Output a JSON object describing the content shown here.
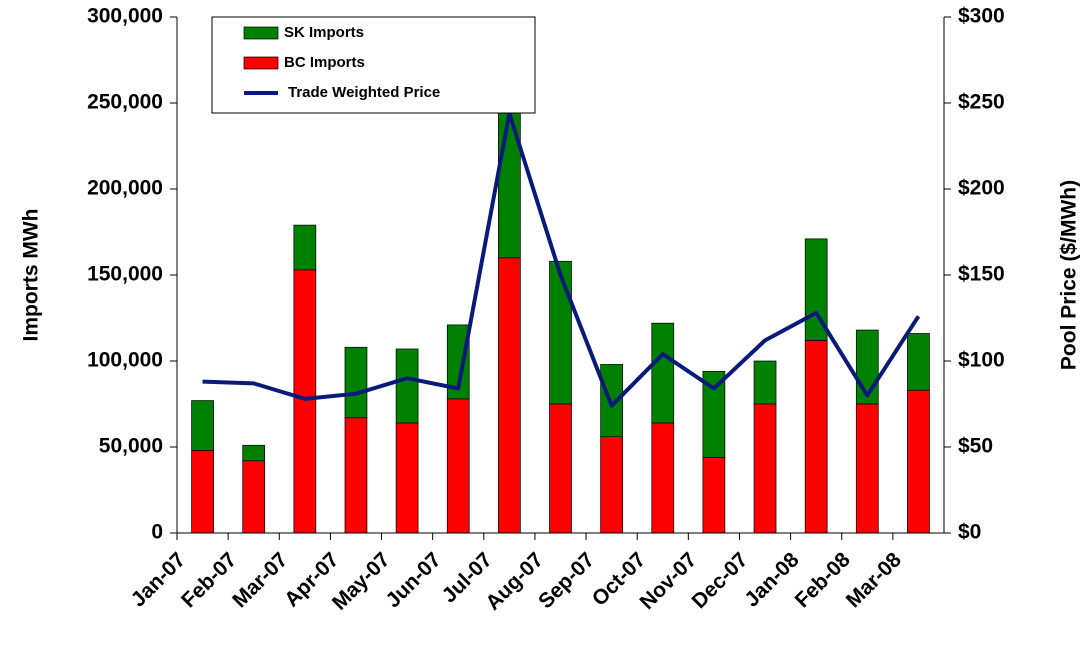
{
  "chart_data": {
    "type": "bar",
    "stacked": true,
    "y_label": "Imports MWh",
    "y2_label": "Pool Price ($/MWh)",
    "categories": [
      "Jan-07",
      "Feb-07",
      "Mar-07",
      "Apr-07",
      "May-07",
      "Jun-07",
      "Jul-07",
      "Aug-07",
      "Sep-07",
      "Oct-07",
      "Nov-07",
      "Dec-07",
      "Jan-08",
      "Feb-08",
      "Mar-08"
    ],
    "series": [
      {
        "name": "BC Imports",
        "type": "bar",
        "color": "#ff0000",
        "values": [
          48000,
          42000,
          153000,
          67000,
          64000,
          78000,
          160000,
          75000,
          56000,
          64000,
          44000,
          75000,
          112000,
          75000,
          83000
        ]
      },
      {
        "name": "SK Imports",
        "type": "bar",
        "color": "#008000",
        "values": [
          29000,
          9000,
          26000,
          41000,
          43000,
          43000,
          85000,
          83000,
          42000,
          58000,
          50000,
          25000,
          59000,
          43000,
          33000
        ]
      },
      {
        "name": "Trade Weighted Price",
        "type": "line",
        "axis": "y2",
        "color": "#0a1a7a",
        "values": [
          88,
          87,
          78,
          81,
          90,
          84,
          244,
          150,
          74,
          104,
          84,
          112,
          128,
          80,
          126
        ]
      }
    ],
    "ylim": [
      0,
      300000
    ],
    "yticks": [
      0,
      {
        "value": 50000,
        "label": "50,000"
      },
      {
        "value": 100000,
        "label": "100,000"
      },
      {
        "value": 150000,
        "label": "150,000"
      },
      {
        "value": 200000,
        "label": "200,000"
      },
      {
        "value": 250000,
        "label": "250,000"
      },
      {
        "value": 300000,
        "label": "300,000"
      }
    ],
    "y2lim": [
      0,
      300
    ],
    "y2ticks": [
      {
        "value": 0,
        "label": "$0"
      },
      {
        "value": 50,
        "label": "$50"
      },
      {
        "value": 100,
        "label": "$100"
      },
      {
        "value": 150,
        "label": "$150"
      },
      {
        "value": 200,
        "label": "$200"
      },
      {
        "value": 250,
        "label": "$250"
      },
      {
        "value": 300,
        "label": "$300"
      }
    ],
    "legend": "top-left"
  }
}
